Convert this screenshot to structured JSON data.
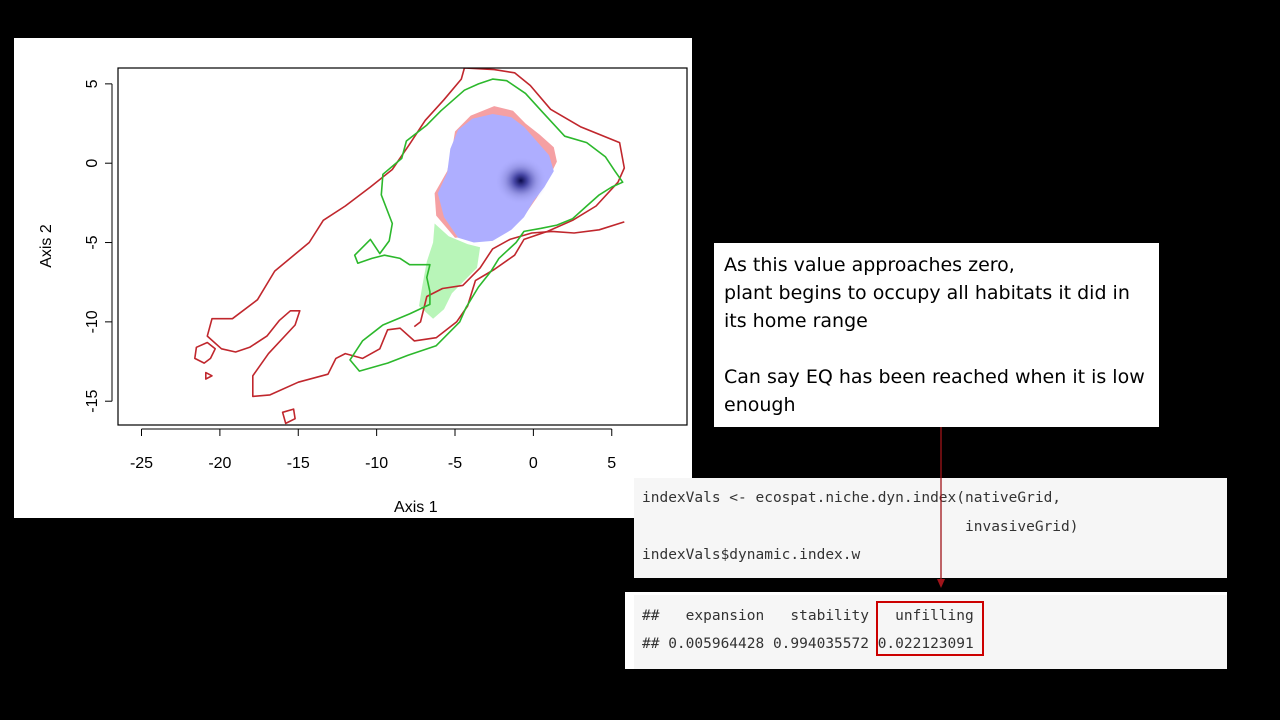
{
  "chart_data": {
    "type": "contour",
    "xlabel": "Axis 1",
    "ylabel": "Axis 2",
    "xlim": [
      -26.5,
      9.8
    ],
    "ylim": [
      -16.5,
      6
    ],
    "x_ticks": [
      -25,
      -20,
      -15,
      -10,
      -5,
      0,
      5
    ],
    "y_ticks": [
      5,
      0,
      -5,
      -10,
      -15
    ],
    "tick_labels": {
      "x": [
        "-25",
        "-20",
        "-15",
        "-10",
        "-5",
        "0",
        "5"
      ],
      "y": [
        "5",
        "0",
        "-5",
        "-10",
        "-15"
      ]
    },
    "grid": false,
    "legend": "none",
    "layers": [
      {
        "role": "native-range-contour",
        "color": "#c0272d",
        "points": [
          [
            -20.5,
            -9.8
          ],
          [
            -19.2,
            -9.8
          ],
          [
            -17.6,
            -8.6
          ],
          [
            -16.5,
            -6.8
          ],
          [
            -14.3,
            -5.0
          ],
          [
            -13.4,
            -3.6
          ],
          [
            -12.0,
            -2.7
          ],
          [
            -10.4,
            -1.5
          ],
          [
            -9.0,
            -0.4
          ],
          [
            -7.9,
            1.2
          ],
          [
            -6.9,
            2.7
          ],
          [
            -5.7,
            4.0
          ],
          [
            -4.6,
            5.3
          ],
          [
            -4.4,
            6.0
          ],
          [
            -2.5,
            5.9
          ],
          [
            -1.2,
            5.7
          ],
          [
            -0.2,
            4.9
          ],
          [
            1.1,
            3.4
          ],
          [
            3.0,
            2.3
          ],
          [
            5.5,
            1.3
          ],
          [
            5.8,
            -0.3
          ],
          [
            5.4,
            -1.2
          ],
          [
            4.0,
            -2.7
          ],
          [
            2.5,
            -3.6
          ],
          [
            0.9,
            -4.3
          ],
          [
            -0.6,
            -4.8
          ],
          [
            -1.2,
            -5.8
          ],
          [
            -2.5,
            -6.7
          ],
          [
            -3.7,
            -7.4
          ],
          [
            -4.2,
            -9.0
          ],
          [
            -4.9,
            -10.0
          ],
          [
            -6.2,
            -11.0
          ],
          [
            -7.6,
            -11.2
          ],
          [
            -8.5,
            -10.4
          ],
          [
            -9.3,
            -10.5
          ],
          [
            -9.8,
            -11.7
          ],
          [
            -10.9,
            -12.3
          ],
          [
            -12.0,
            -12.0
          ],
          [
            -12.6,
            -12.3
          ],
          [
            -13.1,
            -13.3
          ],
          [
            -15.0,
            -13.8
          ],
          [
            -16.8,
            -14.6
          ],
          [
            -17.9,
            -14.7
          ],
          [
            -17.9,
            -13.4
          ],
          [
            -16.9,
            -12.0
          ],
          [
            -15.2,
            -10.2
          ],
          [
            -14.9,
            -9.3
          ],
          [
            -15.5,
            -9.3
          ],
          [
            -16.2,
            -9.9
          ],
          [
            -17.0,
            -10.9
          ],
          [
            -18.1,
            -11.6
          ],
          [
            -19.0,
            -11.9
          ],
          [
            -19.9,
            -11.7
          ],
          [
            -20.8,
            -10.9
          ],
          [
            -20.5,
            -9.8
          ]
        ]
      },
      {
        "role": "native-range-contour",
        "color": "#c0272d",
        "points": [
          [
            5.8,
            -3.7
          ],
          [
            4.2,
            -4.2
          ],
          [
            2.6,
            -4.4
          ],
          [
            1.2,
            -4.3
          ],
          [
            -0.1,
            -4.4
          ],
          [
            -1.5,
            -4.8
          ],
          [
            -2.6,
            -5.4
          ],
          [
            -3.4,
            -6.6
          ],
          [
            -4.5,
            -7.7
          ],
          [
            -5.8,
            -7.9
          ],
          [
            -6.8,
            -8.4
          ],
          [
            -7.2,
            -10.0
          ],
          [
            -7.6,
            -10.3
          ]
        ]
      },
      {
        "role": "native-range-contour",
        "color": "#c0272d",
        "points": [
          [
            -21.5,
            -11.6
          ],
          [
            -20.8,
            -11.3
          ],
          [
            -20.3,
            -11.7
          ],
          [
            -20.6,
            -12.3
          ],
          [
            -21.0,
            -12.6
          ],
          [
            -21.6,
            -12.3
          ],
          [
            -21.5,
            -11.6
          ]
        ]
      },
      {
        "role": "native-range-contour",
        "color": "#c0272d",
        "points": [
          [
            -16.0,
            -15.7
          ],
          [
            -15.3,
            -15.5
          ],
          [
            -15.2,
            -16.1
          ],
          [
            -15.8,
            -16.4
          ],
          [
            -16.0,
            -15.7
          ]
        ]
      },
      {
        "role": "native-range-contour",
        "color": "#c0272d",
        "points": [
          [
            -20.9,
            -13.2
          ],
          [
            -20.5,
            -13.4
          ],
          [
            -20.9,
            -13.6
          ],
          [
            -20.9,
            -13.2
          ]
        ]
      },
      {
        "role": "invasive-range-contour",
        "color": "#2cb82c",
        "points": [
          [
            -11.4,
            -5.8
          ],
          [
            -10.4,
            -4.8
          ],
          [
            -9.8,
            -5.7
          ],
          [
            -9.2,
            -4.9
          ],
          [
            -9.0,
            -3.8
          ],
          [
            -9.7,
            -2.0
          ],
          [
            -9.6,
            -0.7
          ],
          [
            -8.4,
            0.3
          ],
          [
            -8.1,
            1.4
          ],
          [
            -6.8,
            2.4
          ],
          [
            -5.9,
            3.3
          ],
          [
            -4.4,
            4.6
          ],
          [
            -3.5,
            5.0
          ],
          [
            -2.6,
            5.3
          ],
          [
            -1.7,
            5.2
          ],
          [
            -0.5,
            4.4
          ],
          [
            0.6,
            3.2
          ],
          [
            2.0,
            1.7
          ],
          [
            3.4,
            1.3
          ],
          [
            4.6,
            0.4
          ],
          [
            5.2,
            -0.5
          ],
          [
            5.7,
            -1.2
          ],
          [
            5.0,
            -1.5
          ],
          [
            4.2,
            -2.0
          ],
          [
            3.4,
            -2.7
          ],
          [
            2.5,
            -3.5
          ],
          [
            1.5,
            -3.9
          ],
          [
            0.5,
            -4.1
          ],
          [
            -0.6,
            -4.3
          ],
          [
            -1.1,
            -5.0
          ],
          [
            -2.2,
            -6.0
          ],
          [
            -2.7,
            -6.8
          ],
          [
            -3.5,
            -7.8
          ],
          [
            -4.3,
            -9.1
          ],
          [
            -4.7,
            -10.0
          ],
          [
            -6.2,
            -11.5
          ],
          [
            -8.0,
            -12.1
          ],
          [
            -9.3,
            -12.6
          ],
          [
            -11.1,
            -13.1
          ],
          [
            -11.7,
            -12.4
          ],
          [
            -10.9,
            -11.2
          ],
          [
            -9.6,
            -10.2
          ],
          [
            -7.9,
            -9.5
          ],
          [
            -6.6,
            -8.9
          ],
          [
            -6.6,
            -8.1
          ],
          [
            -6.8,
            -7.2
          ],
          [
            -6.6,
            -6.4
          ],
          [
            -7.9,
            -6.4
          ],
          [
            -8.5,
            -6.0
          ],
          [
            -9.5,
            -5.8
          ],
          [
            -10.3,
            -6.0
          ],
          [
            -11.2,
            -6.3
          ],
          [
            -11.4,
            -5.8
          ]
        ]
      },
      {
        "role": "native-density-only",
        "color": "#f5a0a3",
        "points": [
          [
            -5.0,
            2.0
          ],
          [
            -4.0,
            3.0
          ],
          [
            -2.5,
            3.6
          ],
          [
            -1.3,
            3.3
          ],
          [
            -0.5,
            2.5
          ],
          [
            0.4,
            1.8
          ],
          [
            1.3,
            1.0
          ],
          [
            1.5,
            0.1
          ],
          [
            1.0,
            -0.9
          ],
          [
            0.2,
            -2.2
          ],
          [
            -0.5,
            -3.2
          ],
          [
            -1.4,
            -4.0
          ],
          [
            -3.5,
            -4.6
          ],
          [
            -5.0,
            -4.7
          ],
          [
            -6.2,
            -3.3
          ],
          [
            -6.3,
            -1.9
          ],
          [
            -5.5,
            -0.5
          ],
          [
            -5.2,
            0.8
          ],
          [
            -5.0,
            2.0
          ]
        ]
      },
      {
        "role": "overlap-density",
        "color": "#aeaeff",
        "points": [
          [
            -4.8,
            2.1
          ],
          [
            -3.9,
            2.8
          ],
          [
            -2.6,
            3.1
          ],
          [
            -1.4,
            2.9
          ],
          [
            -0.6,
            2.3
          ],
          [
            0.2,
            1.4
          ],
          [
            1.0,
            0.5
          ],
          [
            1.3,
            -0.5
          ],
          [
            0.7,
            -1.5
          ],
          [
            0.0,
            -2.4
          ],
          [
            -0.6,
            -3.4
          ],
          [
            -1.4,
            -4.2
          ],
          [
            -2.6,
            -4.9
          ],
          [
            -3.8,
            -5.0
          ],
          [
            -4.8,
            -4.7
          ],
          [
            -5.7,
            -3.4
          ],
          [
            -6.1,
            -1.9
          ],
          [
            -5.5,
            -0.6
          ],
          [
            -5.3,
            0.9
          ],
          [
            -4.8,
            2.1
          ]
        ]
      },
      {
        "role": "invasive-density-only",
        "color": "#b8f5b8",
        "points": [
          [
            -6.3,
            -3.8
          ],
          [
            -5.4,
            -4.6
          ],
          [
            -4.2,
            -5.1
          ],
          [
            -3.4,
            -5.3
          ],
          [
            -3.6,
            -6.6
          ],
          [
            -4.5,
            -7.5
          ],
          [
            -5.2,
            -8.2
          ],
          [
            -5.7,
            -9.2
          ],
          [
            -6.4,
            -9.8
          ],
          [
            -7.3,
            -9.0
          ],
          [
            -7.1,
            -7.8
          ],
          [
            -6.8,
            -6.2
          ],
          [
            -6.4,
            -5.0
          ],
          [
            -6.3,
            -3.8
          ]
        ]
      }
    ],
    "density_peak": [
      -0.8,
      -1.1
    ]
  },
  "note": {
    "line1": "As this value approaches zero,",
    "line2": "plant begins to occupy all habitats it did in",
    "line3": "its home range",
    "line4": "Can say EQ has been reached when it is low",
    "line5": "enough"
  },
  "code": {
    "line1": "indexVals <- ecospat.niche.dyn.index(nativeGrid,",
    "line2": "                                     invasiveGrid)",
    "line3": "indexVals$dynamic.index.w"
  },
  "output": {
    "line1": "##   expansion   stability   unfilling",
    "line2": "## 0.005964428 0.994035572 0.022123091"
  },
  "colors": {
    "highlight": "#cc0000",
    "arrow": "#a0141a"
  }
}
